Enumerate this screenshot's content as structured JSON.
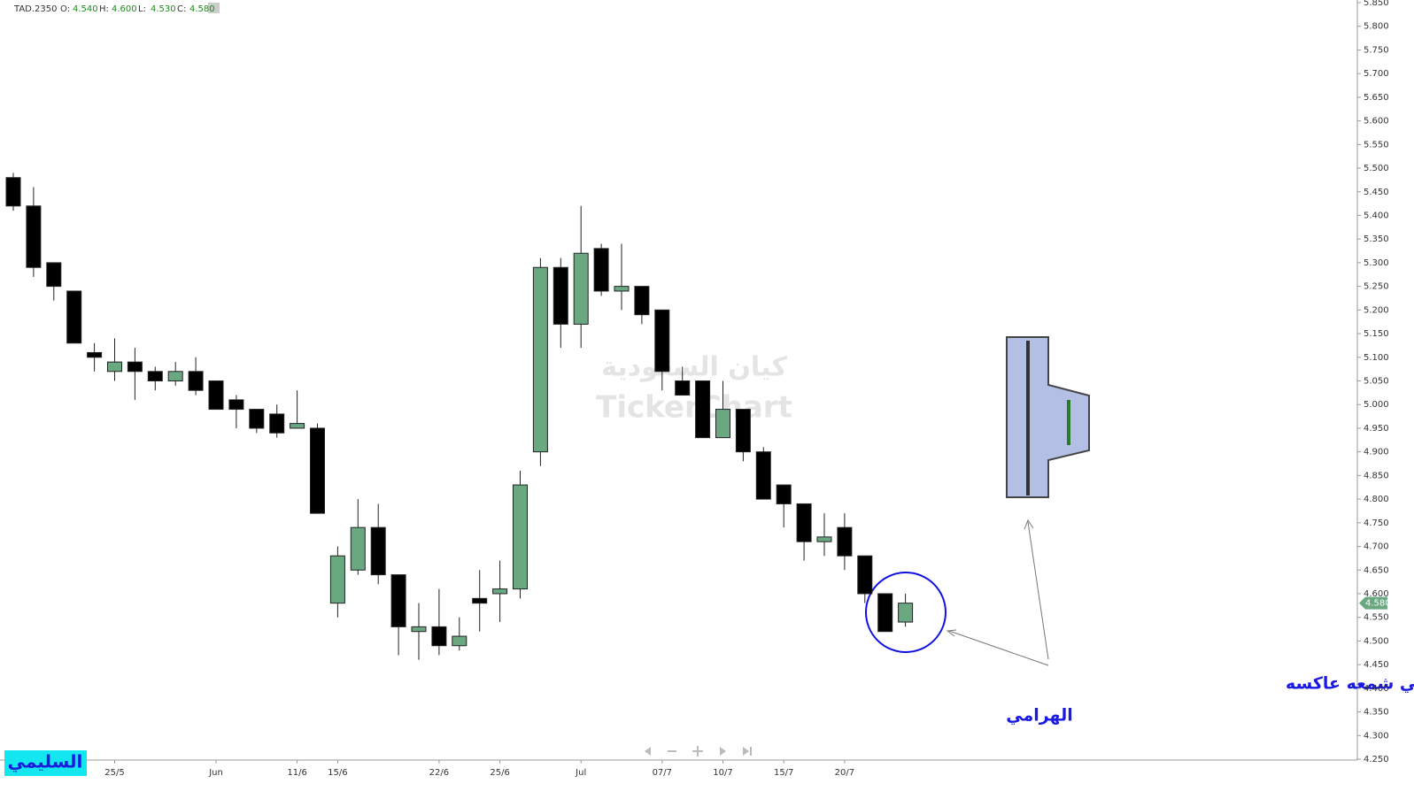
{
  "chart_data": {
    "type": "candlestick",
    "symbol": "TAD.2350",
    "header": [
      {
        "label": "O:",
        "value": 4.54,
        "value_label": "4.540"
      },
      {
        "label": "H:",
        "value": 4.6,
        "value_label": "4.600"
      },
      {
        "label": "L:",
        "value": 4.53,
        "value_label": "4.530"
      },
      {
        "label": "C:",
        "value": 4.58,
        "value_label": "4.580"
      }
    ],
    "categories": [
      null,
      null,
      null,
      null,
      null,
      "25/5",
      null,
      null,
      null,
      null,
      "Jun",
      null,
      null,
      null,
      "11/6",
      null,
      "15/6",
      null,
      null,
      null,
      null,
      "22/6",
      null,
      null,
      "25/6",
      null,
      null,
      null,
      "Jul",
      null,
      null,
      null,
      "07/7",
      null,
      null,
      "10/7",
      null,
      null,
      "15/7",
      null,
      null,
      "20/7",
      null,
      null,
      null
    ],
    "open": [
      5.48,
      5.42,
      5.3,
      5.24,
      5.11,
      5.07,
      5.09,
      5.07,
      5.05,
      5.07,
      5.05,
      5.01,
      4.99,
      4.98,
      4.95,
      4.95,
      4.58,
      4.65,
      4.74,
      4.64,
      4.52,
      4.53,
      4.49,
      4.59,
      4.6,
      4.61,
      4.9,
      5.29,
      5.17,
      5.33,
      5.24,
      5.25,
      5.2,
      5.05,
      5.05,
      4.93,
      4.99,
      4.9,
      4.83,
      4.79,
      4.71,
      4.74,
      4.68,
      4.6,
      4.54
    ],
    "high": [
      5.49,
      5.46,
      5.3,
      5.24,
      5.13,
      5.14,
      5.12,
      5.08,
      5.09,
      5.1,
      5.05,
      5.02,
      4.99,
      5.0,
      5.03,
      4.96,
      4.7,
      4.8,
      4.79,
      4.64,
      4.58,
      4.61,
      4.55,
      4.65,
      4.67,
      4.86,
      5.31,
      5.31,
      5.42,
      5.34,
      5.34,
      5.25,
      5.2,
      5.08,
      5.05,
      5.05,
      4.99,
      4.91,
      4.83,
      4.79,
      4.77,
      4.77,
      4.68,
      4.6,
      4.6
    ],
    "low": [
      5.41,
      5.27,
      5.22,
      5.13,
      5.07,
      5.05,
      5.01,
      5.03,
      5.04,
      5.02,
      4.99,
      4.95,
      4.94,
      4.93,
      4.95,
      4.77,
      4.55,
      4.64,
      4.62,
      4.47,
      4.46,
      4.47,
      4.48,
      4.52,
      4.54,
      4.59,
      4.87,
      5.12,
      5.12,
      5.23,
      5.2,
      5.17,
      5.03,
      5.02,
      4.93,
      4.93,
      4.88,
      4.8,
      4.74,
      4.67,
      4.68,
      4.65,
      4.58,
      4.52,
      4.53
    ],
    "close": [
      5.42,
      5.29,
      5.25,
      5.13,
      5.1,
      5.09,
      5.07,
      5.05,
      5.07,
      5.03,
      4.99,
      4.99,
      4.95,
      4.94,
      4.96,
      4.77,
      4.68,
      4.74,
      4.64,
      4.53,
      4.53,
      4.49,
      4.51,
      4.58,
      4.61,
      4.83,
      5.29,
      5.17,
      5.32,
      5.24,
      5.25,
      5.19,
      5.07,
      5.02,
      4.93,
      4.99,
      4.9,
      4.8,
      4.79,
      4.71,
      4.72,
      4.68,
      4.6,
      4.52,
      4.58
    ],
    "up_color": "#6aa882",
    "down_color": "#000000",
    "ylim": [
      4.25,
      5.85
    ],
    "yticks": [
      {
        "value": 4.25,
        "label": "4.250"
      },
      {
        "value": 4.3,
        "label": "4.300"
      },
      {
        "value": 4.35,
        "label": "4.350"
      },
      {
        "value": 4.4,
        "label": "4.400"
      },
      {
        "value": 4.45,
        "label": "4.450"
      },
      {
        "value": 4.5,
        "label": "4.500"
      },
      {
        "value": 4.55,
        "label": "4.550"
      },
      {
        "value": 4.6,
        "label": "4.600"
      },
      {
        "value": 4.65,
        "label": "4.650"
      },
      {
        "value": 4.7,
        "label": "4.700"
      },
      {
        "value": 4.75,
        "label": "4.750"
      },
      {
        "value": 4.8,
        "label": "4.800"
      },
      {
        "value": 4.85,
        "label": "4.850"
      },
      {
        "value": 4.9,
        "label": "4.900"
      },
      {
        "value": 4.95,
        "label": "4.950"
      },
      {
        "value": 5.0,
        "label": "5.000"
      },
      {
        "value": 5.05,
        "label": "5.050"
      },
      {
        "value": 5.1,
        "label": "5.100"
      },
      {
        "value": 5.15,
        "label": "5.150"
      },
      {
        "value": 5.2,
        "label": "5.200"
      },
      {
        "value": 5.25,
        "label": "5.250"
      },
      {
        "value": 5.3,
        "label": "5.300"
      },
      {
        "value": 5.35,
        "label": "5.350"
      },
      {
        "value": 5.4,
        "label": "5.400"
      },
      {
        "value": 5.45,
        "label": "5.450"
      },
      {
        "value": 5.5,
        "label": "5.500"
      },
      {
        "value": 5.55,
        "label": "5.550"
      },
      {
        "value": 5.6,
        "label": "5.600"
      },
      {
        "value": 5.65,
        "label": "5.650"
      },
      {
        "value": 5.7,
        "label": "5.700"
      },
      {
        "value": 5.75,
        "label": "5.750"
      },
      {
        "value": 5.8,
        "label": "5.800"
      },
      {
        "value": 5.85,
        "label": "5.850"
      }
    ],
    "last_price": {
      "value": 4.58,
      "label": "4.580"
    },
    "watermark": [
      "كيان السعودية",
      "TickerChart"
    ],
    "annotation": [
      "شمعة المرأه الحامل ضهرت بكيان اليوم وهي شمعه عاكسه",
      "الهرامي"
    ],
    "logo": "السليمي"
  }
}
